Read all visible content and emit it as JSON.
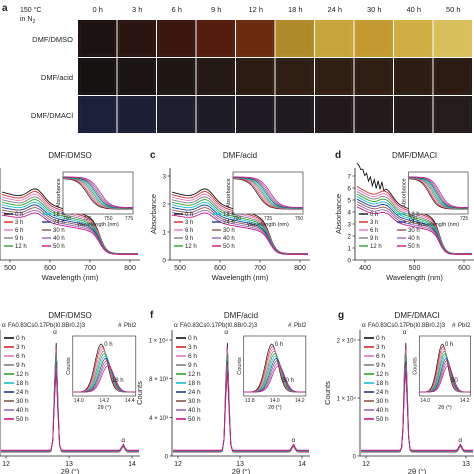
{
  "panel_a": {
    "letter": "a",
    "condition_line1": "150 °C",
    "condition_line2": "in N",
    "condition_sub": "2",
    "times": [
      "0 h",
      "3 h",
      "6 h",
      "9 h",
      "12 h",
      "18 h",
      "24 h",
      "30 h",
      "40 h",
      "50 h"
    ],
    "rows": [
      {
        "label": "DMF/DMSO",
        "colors": [
          "#1d1211",
          "#2a1410",
          "#3a160f",
          "#521c0d",
          "#6c2a0c",
          "#b08a2a",
          "#c8a43a",
          "#c49a30",
          "#cfae44",
          "#d9bf5c"
        ]
      },
      {
        "label": "DMF/acid",
        "colors": [
          "#151212",
          "#1a1413",
          "#1e1613",
          "#241812",
          "#2a1b12",
          "#2d1d13",
          "#2f1e13",
          "#2e1d13",
          "#2c1c13",
          "#2b1b13"
        ]
      },
      {
        "label": "DMF/DMACl",
        "colors": [
          "#1a1f3a",
          "#1b1f36",
          "#1c1d2e",
          "#1d1b26",
          "#1e1a22",
          "#1f1a1f",
          "#211a1d",
          "#221b1c",
          "#231b1b",
          "#241b1a"
        ]
      }
    ]
  },
  "abs_panels": [
    {
      "letter": "",
      "title": "DMF/DMSO",
      "ylabel": "",
      "xlabel": "Wavelength (nm)",
      "xticks": [
        "500",
        "600",
        "700",
        "800"
      ],
      "inset": {
        "ylabel": "Absorbance",
        "xlabel": "Wavelength (nm)",
        "xticks": [
          "700",
          "725",
          "750",
          "775"
        ]
      },
      "legend": [
        "0 h",
        "3 h",
        "6 h",
        "9 h",
        "12 h",
        "18 h",
        "24 h",
        "30 h",
        "40 h",
        "50 h"
      ]
    },
    {
      "letter": "c",
      "title": "DMF/acid",
      "ylabel": "Absorbance",
      "xlabel": "Wavelength (nm)",
      "xticks": [
        "500",
        "600",
        "700",
        "800"
      ],
      "yticks": [
        "0",
        "1",
        "2",
        "3"
      ],
      "inset": {
        "ylabel": "Absorbance",
        "xlabel": "Wavelength (nm)",
        "xticks": [
          "700",
          "725",
          "750"
        ],
        "yticks": [
          "0.8",
          "1.0",
          "1.2"
        ]
      },
      "legend": [
        "0 h",
        "3 h",
        "6 h",
        "9 h",
        "12 h",
        "18 h",
        "24 h",
        "30 h",
        "40 h",
        "50 h"
      ]
    },
    {
      "letter": "d",
      "title": "DMF/DMACl",
      "ylabel": "Absorbance",
      "xlabel": "Wavelength (nm)",
      "xticks": [
        "400",
        "500",
        "600"
      ],
      "yticks": [
        "0",
        "1",
        "2",
        "3",
        "4",
        "5",
        "6",
        "7"
      ],
      "inset": {
        "ylabel": "Absorbance",
        "xlabel": "Wavelength (nm)",
        "xticks": [
          "700",
          "725"
        ]
      },
      "legend": [
        "0 h",
        "3 h",
        "6 h",
        "9 h",
        "12 h",
        "18 h",
        "24 h",
        "30 h",
        "40 h",
        "50 h"
      ]
    }
  ],
  "xrd_panels": [
    {
      "letter": "",
      "title": "DMF/DMSO",
      "formula": "FA0.83Cs0.17Pb(I0.8Br0.2)3",
      "formula2": "PbI2",
      "xlabel": "2θ (°)",
      "xticks": [
        "12",
        "13",
        "14"
      ],
      "inset": {
        "ylabel": "Counts",
        "xlabel": "2θ (°)",
        "xticks": [
          "14.0",
          "14.2",
          "14.4"
        ],
        "labels": [
          "0 h",
          "18 h"
        ]
      },
      "legend": [
        "0 h",
        "3 h",
        "6 h",
        "9 h",
        "12 h",
        "18 h",
        "24 h",
        "30 h",
        "40 h",
        "50 h"
      ]
    },
    {
      "letter": "f",
      "title": "DMF/acid",
      "formula": "FA0.83Cs0.17Pb(I0.8Br0.2)3",
      "formula2": "PbI2",
      "ylabel": "Counts",
      "xlabel": "2θ (°)",
      "xticks": [
        "12",
        "13",
        "14"
      ],
      "yticks": [
        "0",
        "4 × 10³",
        "8 × 10³",
        "1 × 10⁴"
      ],
      "inset": {
        "ylabel": "Counts",
        "xlabel": "2θ (°)",
        "xticks": [
          "13.8",
          "14.0",
          "14.2"
        ],
        "labels": [
          "0 h",
          "50 h"
        ]
      },
      "legend": [
        "0 h",
        "3 h",
        "6 h",
        "9 h",
        "12 h",
        "18 h",
        "24 h",
        "30 h",
        "40 h",
        "50 h"
      ]
    },
    {
      "letter": "g",
      "title": "DMF/DMACl",
      "formula": "FA0.83Cs0.17Pb(I0.8Br0.2)3",
      "formula2": "PbI2",
      "ylabel": "Counts",
      "xlabel": "2θ (°)",
      "xticks": [
        "12",
        "13"
      ],
      "yticks": [
        "0",
        "1 × 10⁴",
        "2 × 10⁴"
      ],
      "inset": {
        "ylabel": "Counts",
        "xlabel": "2θ (°)",
        "xticks": [
          "14.0",
          "14.2"
        ],
        "yticks": [
          "0",
          "500",
          "1,000",
          "1,500",
          "2,000"
        ],
        "labels": [
          "0 h",
          "50"
        ]
      },
      "legend": [
        "0 h",
        "3 h",
        "6 h",
        "9 h",
        "12 h",
        "18 h",
        "24 h",
        "30 h",
        "40 h",
        "50 h"
      ]
    }
  ],
  "series_colors": [
    "#111111",
    "#d62728",
    "#e377c2",
    "#7f7f7f",
    "#2ca02c",
    "#17becf",
    "#1f3a93",
    "#8c564b",
    "#9467bd",
    "#c71585"
  ],
  "marker_colors": {
    "perovskite": "#e74c3c",
    "pbi2": "#f39c12"
  }
}
